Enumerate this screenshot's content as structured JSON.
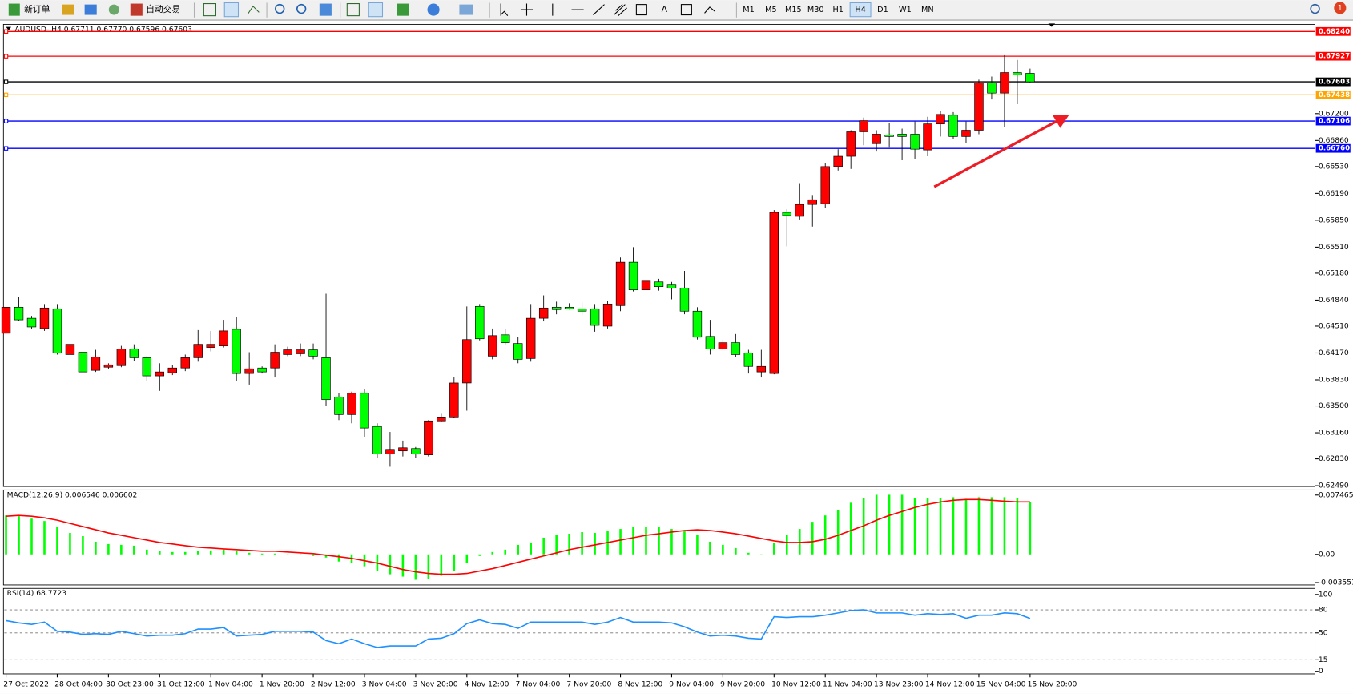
{
  "toolbar": {
    "new_order": "新订单",
    "auto_trading": "自动交易",
    "text_tool": "A",
    "timeframes": [
      "M1",
      "M5",
      "M15",
      "M30",
      "H1",
      "H4",
      "D1",
      "W1",
      "MN"
    ],
    "active_timeframe": "H4",
    "notification_count": 1
  },
  "chart_data": [
    {
      "type": "candlestick",
      "title": "AUDUSD-,H4  0.67711 0.67770 0.67596 0.67603",
      "categories": [
        "27 Oct 2022",
        null,
        null,
        null,
        "28 Oct 04:00",
        null,
        null,
        null,
        "30 Oct 23:00",
        null,
        null,
        null,
        "31 Oct 12:00",
        null,
        null,
        null,
        "1 Nov 04:00",
        null,
        null,
        null,
        "1 Nov 20:00",
        null,
        null,
        null,
        "2 Nov 12:00",
        null,
        null,
        null,
        "3 Nov 04:00",
        null,
        null,
        null,
        "3 Nov 20:00",
        null,
        null,
        null,
        "4 Nov 12:00",
        null,
        null,
        null,
        "7 Nov 04:00",
        null,
        null,
        null,
        "7 Nov 20:00",
        null,
        null,
        null,
        "8 Nov 12:00",
        null,
        null,
        null,
        "9 Nov 04:00",
        null,
        null,
        null,
        "9 Nov 20:00",
        null,
        null,
        null,
        "10 Nov 12:00",
        null,
        null,
        null,
        "11 Nov 04:00",
        null,
        null,
        null,
        "13 Nov 23:00",
        null,
        null,
        null,
        "14 Nov 12:00",
        null,
        null,
        null,
        "15 Nov 04:00",
        null,
        null,
        null,
        "15 Nov 20:00"
      ],
      "open": [
        0.6442,
        0.6475,
        0.6461,
        0.6448,
        0.6473,
        0.6415,
        0.6418,
        0.6395,
        0.6399,
        0.6401,
        0.6422,
        0.6411,
        0.6388,
        0.6392,
        0.6398,
        0.6411,
        0.6424,
        0.6426,
        0.6447,
        0.6391,
        0.6398,
        0.6398,
        0.6415,
        0.6416,
        0.6421,
        0.6411,
        0.6361,
        0.6339,
        0.6366,
        0.6324,
        0.6289,
        0.6293,
        0.6296,
        0.6288,
        0.6331,
        0.6336,
        0.6379,
        0.6476,
        0.6413,
        0.644,
        0.6429,
        0.641,
        0.6461,
        0.6475,
        0.6475,
        0.6473,
        0.6473,
        0.6451,
        0.6477,
        0.6532,
        0.6497,
        0.6507,
        0.6503,
        0.6499,
        0.647,
        0.6438,
        0.6422,
        0.643,
        0.6417,
        0.6393,
        0.6391,
        0.6595,
        0.659,
        0.6605,
        0.6606,
        0.6653,
        0.6666,
        0.6697,
        0.6682,
        0.6693,
        0.6694,
        0.6694,
        0.6674,
        0.6707,
        0.6718,
        0.6691,
        0.6699,
        0.6759,
        0.6746,
        0.6772,
        0.67711
      ],
      "high": [
        0.649,
        0.6488,
        0.6464,
        0.6479,
        0.6479,
        0.6434,
        0.6431,
        0.6421,
        0.6404,
        0.6426,
        0.6428,
        0.6413,
        0.6404,
        0.6402,
        0.6415,
        0.6446,
        0.6445,
        0.6459,
        0.6463,
        0.6418,
        0.64,
        0.6428,
        0.6425,
        0.6429,
        0.6429,
        0.6492,
        0.6366,
        0.6368,
        0.6371,
        0.6328,
        0.6317,
        0.6306,
        0.6298,
        0.6332,
        0.6341,
        0.6386,
        0.6476,
        0.6479,
        0.6448,
        0.6448,
        0.6437,
        0.6479,
        0.649,
        0.6482,
        0.648,
        0.6481,
        0.6479,
        0.6483,
        0.6538,
        0.6551,
        0.6514,
        0.6511,
        0.6507,
        0.6521,
        0.6475,
        0.6459,
        0.6434,
        0.6441,
        0.6421,
        0.6421,
        0.6598,
        0.6599,
        0.6632,
        0.6617,
        0.6657,
        0.6675,
        0.6699,
        0.6715,
        0.6699,
        0.6708,
        0.6701,
        0.671,
        0.6716,
        0.6723,
        0.6722,
        0.671,
        0.6763,
        0.6767,
        0.6794,
        0.6788,
        0.6777
      ],
      "low": [
        0.6426,
        0.6457,
        0.6447,
        0.6445,
        0.6415,
        0.6406,
        0.639,
        0.6393,
        0.6397,
        0.6399,
        0.6407,
        0.6382,
        0.6369,
        0.6389,
        0.6394,
        0.6406,
        0.6419,
        0.6424,
        0.6382,
        0.6377,
        0.6391,
        0.6386,
        0.6413,
        0.6413,
        0.6409,
        0.635,
        0.6332,
        0.6328,
        0.6311,
        0.6284,
        0.6273,
        0.6286,
        0.6284,
        0.6286,
        0.633,
        0.6335,
        0.6344,
        0.6433,
        0.6409,
        0.6428,
        0.6404,
        0.6406,
        0.6457,
        0.6466,
        0.6472,
        0.6465,
        0.6444,
        0.6448,
        0.647,
        0.6495,
        0.6477,
        0.6496,
        0.6485,
        0.6466,
        0.6434,
        0.6415,
        0.6421,
        0.6412,
        0.6391,
        0.6386,
        0.639,
        0.6552,
        0.6586,
        0.6577,
        0.6601,
        0.6648,
        0.665,
        0.668,
        0.6672,
        0.6677,
        0.6661,
        0.6663,
        0.6666,
        0.6691,
        0.6688,
        0.6683,
        0.6694,
        0.6738,
        0.6703,
        0.6732,
        0.67596
      ],
      "close": [
        0.6475,
        0.6459,
        0.645,
        0.6474,
        0.6417,
        0.6428,
        0.6393,
        0.6412,
        0.6402,
        0.6422,
        0.6411,
        0.6388,
        0.6393,
        0.6398,
        0.6411,
        0.6428,
        0.6428,
        0.6445,
        0.6391,
        0.6397,
        0.6393,
        0.6418,
        0.6421,
        0.6421,
        0.6413,
        0.6358,
        0.6339,
        0.6366,
        0.6322,
        0.6289,
        0.6295,
        0.6297,
        0.6289,
        0.6331,
        0.6336,
        0.6379,
        0.6434,
        0.6435,
        0.6439,
        0.643,
        0.6409,
        0.6461,
        0.6474,
        0.6472,
        0.6473,
        0.647,
        0.6452,
        0.6479,
        0.6532,
        0.6497,
        0.6508,
        0.6501,
        0.6499,
        0.647,
        0.6437,
        0.6422,
        0.643,
        0.6415,
        0.64,
        0.64,
        0.6595,
        0.6591,
        0.6605,
        0.6611,
        0.6653,
        0.6666,
        0.6697,
        0.6711,
        0.6694,
        0.6691,
        0.6691,
        0.6675,
        0.6707,
        0.6719,
        0.6691,
        0.6699,
        0.6759,
        0.6746,
        0.6772,
        0.6769,
        0.67603
      ],
      "up_color": "#ff0000",
      "down_color": "#00ff00",
      "ylim": [
        0.6248,
        0.6833
      ],
      "yticks": [
        {
          "value": 0.672,
          "label": "0.67200"
        },
        {
          "value": 0.6686,
          "label": "0.66860"
        },
        {
          "value": 0.6653,
          "label": "0.66530"
        },
        {
          "value": 0.6619,
          "label": "0.66190"
        },
        {
          "value": 0.6585,
          "label": "0.65850"
        },
        {
          "value": 0.6551,
          "label": "0.65510"
        },
        {
          "value": 0.6518,
          "label": "0.65180"
        },
        {
          "value": 0.6484,
          "label": "0.64840"
        },
        {
          "value": 0.6451,
          "label": "0.64510"
        },
        {
          "value": 0.6417,
          "label": "0.64170"
        },
        {
          "value": 0.6383,
          "label": "0.63830"
        },
        {
          "value": 0.635,
          "label": "0.63500"
        },
        {
          "value": 0.6316,
          "label": "0.63160"
        },
        {
          "value": 0.6283,
          "label": "0.62830"
        },
        {
          "value": 0.6249,
          "label": "0.62490"
        }
      ],
      "hlines": [
        {
          "value": 0.6824,
          "label": "0.68240",
          "color": "#ff0000"
        },
        {
          "value": 0.67927,
          "label": "0.67927",
          "color": "#ff0000"
        },
        {
          "value": 0.67603,
          "label": "0.67603",
          "color": "#000000"
        },
        {
          "value": 0.67438,
          "label": "0.67438",
          "color": "#ffa500"
        },
        {
          "value": 0.67106,
          "label": "0.67106",
          "color": "#0000ff"
        },
        {
          "value": 0.6676,
          "label": "0.66760",
          "color": "#0000ff"
        }
      ]
    },
    {
      "type": "bar",
      "title": "MACD(12,26,9) 0.006546 0.006602",
      "series": [
        {
          "color": "#00ff00",
          "values": [
            0.0049,
            0.0048,
            0.0045,
            0.0042,
            0.0035,
            0.0027,
            0.0023,
            0.0016,
            0.0013,
            0.0012,
            0.0011,
            0.0006,
            0.0004,
            0.0003,
            0.0003,
            0.0004,
            0.0005,
            0.0006,
            0.0004,
            0.0002,
            0.0001,
            0.0001,
            2e-05,
            -0.0001,
            -0.0002,
            -0.0004,
            -0.0009,
            -0.0011,
            -0.0015,
            -0.0021,
            -0.0025,
            -0.0028,
            -0.0032,
            -0.0031,
            -0.0027,
            -0.0021,
            -0.0011,
            -0.0002,
            0.0003,
            0.0006,
            0.0012,
            0.0015,
            0.0021,
            0.0024,
            0.0026,
            0.0028,
            0.0027,
            0.0029,
            0.0032,
            0.0035,
            0.0035,
            0.0035,
            0.0032,
            0.003,
            0.0024,
            0.0016,
            0.0012,
            0.0008,
            0.0002,
            -0.0001,
            0.0015,
            0.0025,
            0.0032,
            0.0041,
            0.0049,
            0.0056,
            0.0065,
            0.0071,
            0.0075,
            0.0075,
            0.0075,
            0.0071,
            0.0071,
            0.0071,
            0.0072,
            0.007,
            0.0072,
            0.0072,
            0.0072,
            0.0071,
            0.006546
          ]
        },
        {
          "type": "line",
          "color": "#ff0000",
          "values": [
            0.0048,
            0.0049,
            0.0048,
            0.0046,
            0.0043,
            0.0039,
            0.0035,
            0.0031,
            0.0027,
            0.0024,
            0.0021,
            0.0018,
            0.0015,
            0.0013,
            0.0011,
            0.0009,
            0.0008,
            0.0007,
            0.0006,
            0.0005,
            0.0004,
            0.0004,
            0.0003,
            0.0002,
            0.0001,
            -0.0001,
            -0.0003,
            -0.0005,
            -0.0008,
            -0.0011,
            -0.0015,
            -0.0019,
            -0.0022,
            -0.0024,
            -0.0025,
            -0.0025,
            -0.0024,
            -0.0021,
            -0.0018,
            -0.0014,
            -0.001,
            -0.0006,
            -0.0002,
            0.0002,
            0.0006,
            0.0009,
            0.0012,
            0.0015,
            0.0018,
            0.0021,
            0.0024,
            0.0026,
            0.0028,
            0.003,
            0.0031,
            0.003,
            0.0028,
            0.0026,
            0.0023,
            0.002,
            0.0017,
            0.0015,
            0.0015,
            0.0016,
            0.0019,
            0.0024,
            0.003,
            0.0036,
            0.0043,
            0.0049,
            0.0054,
            0.0059,
            0.0063,
            0.0066,
            0.0068,
            0.0069,
            0.0069,
            0.0068,
            0.0067,
            0.0066,
            0.006602
          ]
        }
      ],
      "ylim": [
        -0.00385,
        0.00811
      ],
      "yticks": [
        0.007465,
        {
          "value": 0,
          "label": "0.00"
        },
        -0.003551
      ]
    },
    {
      "type": "line",
      "title": "RSI(14) 68.7723",
      "series": [
        {
          "color": "#1e90ff",
          "values": [
            66,
            63,
            61,
            64,
            52,
            51,
            48,
            49,
            48,
            52,
            49,
            46,
            47,
            47,
            49,
            55,
            55,
            57,
            46,
            47,
            48,
            52,
            52,
            52,
            51,
            40,
            36,
            42,
            36,
            31,
            33,
            33,
            33,
            42,
            43,
            49,
            62,
            67,
            62,
            61,
            56,
            64,
            64,
            64,
            64,
            64,
            61,
            64,
            70,
            64,
            64,
            64,
            63,
            58,
            51,
            46,
            47,
            46,
            43,
            42,
            71,
            70,
            71,
            71,
            73,
            76,
            79,
            80,
            76,
            76,
            76,
            73,
            75,
            74,
            75,
            69,
            73,
            73,
            76,
            75,
            68.7723
          ]
        }
      ],
      "ylim": [
        -3.4,
        107.9
      ],
      "yticks": [
        100,
        80,
        50,
        15,
        0
      ],
      "level_lines": true
    }
  ]
}
